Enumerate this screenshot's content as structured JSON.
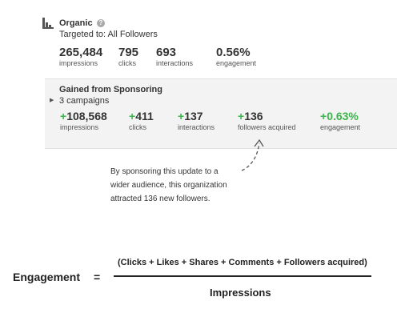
{
  "organic": {
    "icon": "bar-chart-icon",
    "title": "Organic",
    "help_icon": "help-icon",
    "help_glyph": "?",
    "targeted": "Targeted to: All Followers",
    "stats": [
      {
        "value": "265,484",
        "label": "impressions"
      },
      {
        "value": "795",
        "label": "clicks"
      },
      {
        "value": "693",
        "label": "interactions"
      },
      {
        "value": "0.56%",
        "label": "engagement"
      }
    ]
  },
  "sponsored": {
    "title": "Gained from Sponsoring",
    "caret_icon": "caret-right-icon",
    "campaigns": "3 campaigns",
    "stats": [
      {
        "sign": "+",
        "value": "108,568",
        "label": "impressions"
      },
      {
        "sign": "+",
        "value": "411",
        "label": "clicks"
      },
      {
        "sign": "+",
        "value": "137",
        "label": "interactions"
      },
      {
        "sign": "+",
        "value": "136",
        "label": "followers acquired"
      },
      {
        "sign": "+",
        "value": "0.63%",
        "label": "engagement"
      }
    ],
    "accent_color": "#3bb54a"
  },
  "annotation": {
    "line1": "By sponsoring this update to a",
    "line2": "wider audience, this organization",
    "line3": "attracted 136 new followers."
  },
  "formula": {
    "label": "Engagement",
    "equals": "=",
    "numerator": "(Clicks + Likes + Shares + Comments + Followers acquired)",
    "denominator": "Impressions"
  }
}
